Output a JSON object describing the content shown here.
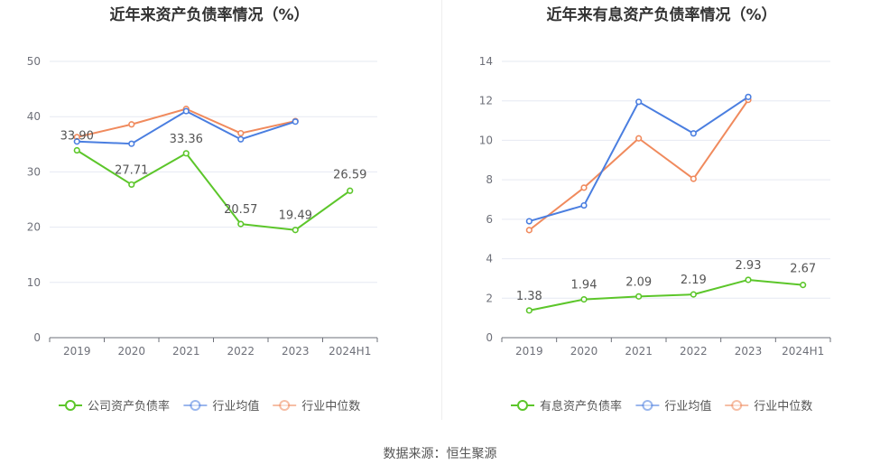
{
  "source": "数据来源：恒生聚源",
  "colors": {
    "company": "#5cc62a",
    "avg": "#4a7ee0",
    "median": "#f08a5d",
    "grid": "#e6e9f2",
    "axis": "#6e7079",
    "label": "#555555",
    "title": "#333333"
  },
  "chart_data": [
    {
      "type": "line",
      "title": "近年来资产负债率情况（%）",
      "categories": [
        "2019",
        "2020",
        "2021",
        "2022",
        "2023",
        "2024H1"
      ],
      "ylim": [
        0,
        50
      ],
      "yticks": [
        0,
        10,
        20,
        30,
        40,
        50
      ],
      "grid": true,
      "legend_position": "bottom",
      "series": [
        {
          "name": "公司资产负债率",
          "color": "#5cc62a",
          "values": [
            33.9,
            27.71,
            33.36,
            20.57,
            19.49,
            26.59
          ],
          "labels": [
            "33.90",
            "27.71",
            "33.36",
            "20.57",
            "19.49",
            "26.59"
          ]
        },
        {
          "name": "行业均值",
          "color": "#4a7ee0",
          "values": [
            35.5,
            35.1,
            41.0,
            35.9,
            39.1,
            null
          ]
        },
        {
          "name": "行业中位数",
          "color": "#f08a5d",
          "values": [
            36.3,
            38.6,
            41.4,
            37.0,
            39.2,
            null
          ]
        }
      ]
    },
    {
      "type": "line",
      "title": "近年来有息资产负债率情况（%）",
      "categories": [
        "2019",
        "2020",
        "2021",
        "2022",
        "2023",
        "2024H1"
      ],
      "ylim": [
        0,
        14
      ],
      "yticks": [
        0,
        2,
        4,
        6,
        8,
        10,
        12,
        14
      ],
      "grid": true,
      "legend_position": "bottom",
      "series": [
        {
          "name": "有息资产负债率",
          "color": "#5cc62a",
          "values": [
            1.38,
            1.94,
            2.09,
            2.19,
            2.93,
            2.67
          ],
          "labels": [
            "1.38",
            "1.94",
            "2.09",
            "2.19",
            "2.93",
            "2.67"
          ]
        },
        {
          "name": "行业均值",
          "color": "#4a7ee0",
          "values": [
            5.9,
            6.7,
            11.95,
            10.35,
            12.2,
            null
          ]
        },
        {
          "name": "行业中位数",
          "color": "#f08a5d",
          "values": [
            5.45,
            7.6,
            10.1,
            8.05,
            12.05,
            null
          ]
        }
      ]
    }
  ]
}
